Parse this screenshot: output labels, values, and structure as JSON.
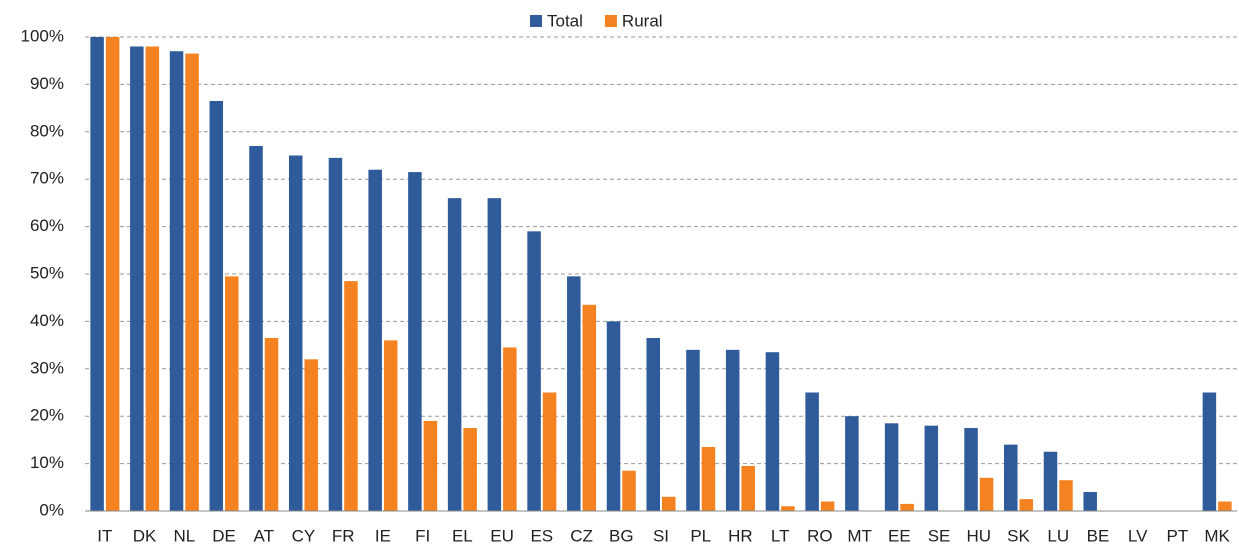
{
  "chart_data": {
    "type": "bar",
    "categories": [
      "IT",
      "DK",
      "NL",
      "DE",
      "AT",
      "CY",
      "FR",
      "IE",
      "FI",
      "EL",
      "EU",
      "ES",
      "CZ",
      "BG",
      "SI",
      "PL",
      "HR",
      "LT",
      "RO",
      "MT",
      "EE",
      "SE",
      "HU",
      "SK",
      "LU",
      "BE",
      "LV",
      "PT",
      "MK"
    ],
    "series": [
      {
        "name": "Total",
        "color": "#2f5b9b",
        "values": [
          100,
          98,
          97,
          86.5,
          77,
          75,
          74.5,
          72,
          71.5,
          66,
          66,
          59,
          49.5,
          40,
          36.5,
          34,
          34,
          33.5,
          25,
          20,
          18.5,
          18,
          17.5,
          14,
          12.5,
          4,
          0,
          0,
          25
        ]
      },
      {
        "name": "Rural",
        "color": "#f58220",
        "values": [
          100,
          98,
          96.5,
          49.5,
          36.5,
          32,
          48.5,
          36,
          19,
          17.5,
          34.5,
          25,
          43.5,
          8.5,
          3,
          13.5,
          9.5,
          1,
          2,
          0,
          1.5,
          0,
          7,
          2.5,
          6.5,
          0,
          0,
          0,
          2
        ]
      }
    ],
    "ylim": [
      0,
      100
    ],
    "yticks": [
      {
        "value": 0,
        "label": "0%"
      },
      {
        "value": 10,
        "label": "10%"
      },
      {
        "value": 20,
        "label": "20%"
      },
      {
        "value": 30,
        "label": "30%"
      },
      {
        "value": 40,
        "label": "40%"
      },
      {
        "value": 50,
        "label": "50%"
      },
      {
        "value": 60,
        "label": "60%"
      },
      {
        "value": 70,
        "label": "70%"
      },
      {
        "value": 80,
        "label": "80%"
      },
      {
        "value": 90,
        "label": "90%"
      },
      {
        "value": 100,
        "label": "100%"
      }
    ],
    "grid": true,
    "legend": "top"
  }
}
